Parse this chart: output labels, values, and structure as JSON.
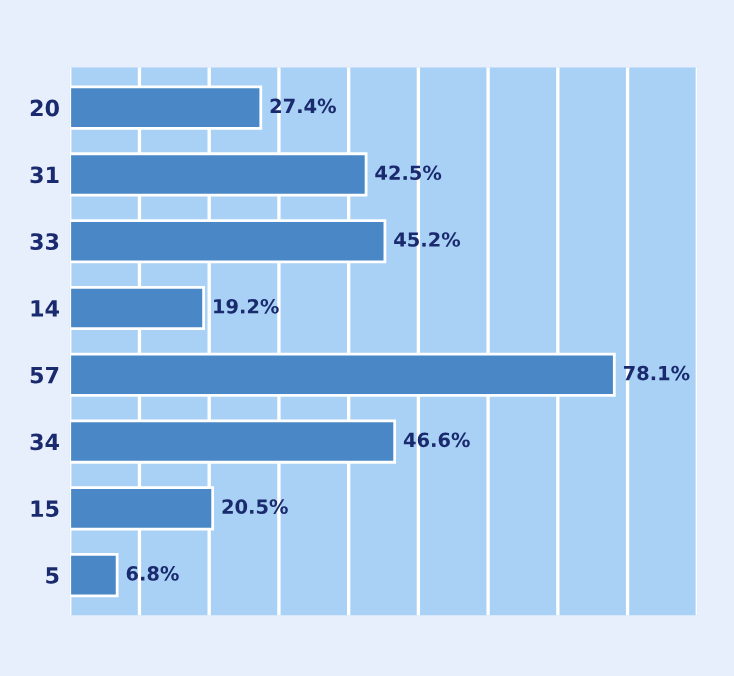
{
  "chart_data": {
    "type": "bar",
    "orientation": "horizontal",
    "categories": [
      "20",
      "31",
      "33",
      "14",
      "57",
      "34",
      "15",
      "5"
    ],
    "values": [
      27.4,
      42.5,
      45.2,
      19.2,
      78.1,
      46.6,
      20.5,
      6.8
    ],
    "value_labels": [
      "27.4%",
      "42.5%",
      "45.2%",
      "19.2%",
      "78.1%",
      "46.6%",
      "20.5%",
      "6.8%"
    ],
    "color": "#4a87c6",
    "xlim": [
      0,
      90
    ],
    "xticks": [
      {
        "value": 0,
        "label": null
      },
      {
        "value": 10,
        "label": null
      },
      {
        "value": 20,
        "label": null
      },
      {
        "value": 30,
        "label": null
      },
      {
        "value": 40,
        "label": null
      },
      {
        "value": 50,
        "label": null
      },
      {
        "value": 60,
        "label": null
      },
      {
        "value": 70,
        "label": null
      },
      {
        "value": 80,
        "label": null
      },
      {
        "value": 90,
        "label": null
      }
    ],
    "grid": "x",
    "tick_labels": "y"
  }
}
